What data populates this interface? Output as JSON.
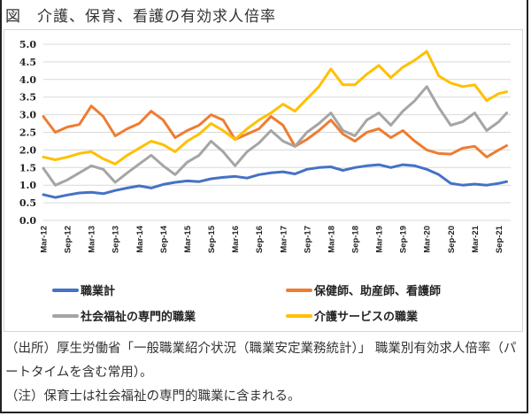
{
  "figure": {
    "title": "図　介護、保育、看護の有効求人倍率",
    "source_note": "（出所）厚生労働省「一般職業紹介状況（職業安定業務統計）」 職業別有効求人倍率（パートタイムを含む常用）。",
    "note": "（注）保育士は社会福祉の専門的職業に含まれる。"
  },
  "chart_data": {
    "type": "line",
    "title": "",
    "xlabel": "",
    "ylabel": "",
    "ylim": [
      0,
      5
    ],
    "yticks": [
      "0.0",
      "0.5",
      "1.0",
      "1.5",
      "2.0",
      "2.5",
      "3.0",
      "3.5",
      "4.0",
      "4.5",
      "5.0"
    ],
    "ytick_values": [
      0,
      0.5,
      1,
      1.5,
      2,
      2.5,
      3,
      3.5,
      4,
      4.5,
      5
    ],
    "xticks": [
      "Mar-12",
      "Sep-12",
      "Mar-13",
      "Sep-13",
      "Mar-14",
      "Sep-14",
      "Mar-15",
      "Sep-15",
      "Mar-16",
      "Sep-16",
      "Mar-17",
      "Sep-17",
      "Mar-18",
      "Sep-18",
      "Mar-19",
      "Sep-19",
      "Mar-20",
      "Sep-20",
      "Mar-21",
      "Sep-21"
    ],
    "xtick_months": [
      0,
      6,
      12,
      18,
      24,
      30,
      36,
      42,
      48,
      54,
      60,
      66,
      72,
      78,
      84,
      90,
      96,
      102,
      108,
      114
    ],
    "x_months_from_Mar12": [
      0,
      3,
      6,
      9,
      12,
      15,
      18,
      21,
      24,
      27,
      30,
      33,
      36,
      39,
      42,
      45,
      48,
      51,
      54,
      57,
      60,
      63,
      66,
      69,
      72,
      75,
      78,
      81,
      84,
      87,
      90,
      93,
      96,
      99,
      102,
      105,
      108,
      111,
      114,
      116
    ],
    "x_max_month": 117,
    "grid": true,
    "legend": "bottom",
    "series": [
      {
        "name": "職業計",
        "color": "#4472c4",
        "values": [
          0.73,
          0.65,
          0.72,
          0.78,
          0.8,
          0.76,
          0.85,
          0.92,
          0.98,
          0.92,
          1.02,
          1.08,
          1.12,
          1.1,
          1.18,
          1.22,
          1.25,
          1.2,
          1.3,
          1.35,
          1.38,
          1.32,
          1.45,
          1.5,
          1.52,
          1.42,
          1.5,
          1.55,
          1.58,
          1.5,
          1.58,
          1.55,
          1.45,
          1.3,
          1.05,
          1.0,
          1.03,
          1.0,
          1.05,
          1.1
        ]
      },
      {
        "name": "保健師、助産師、看護師",
        "color": "#ed7d31",
        "values": [
          2.95,
          2.5,
          2.65,
          2.72,
          3.25,
          2.95,
          2.4,
          2.6,
          2.75,
          3.1,
          2.85,
          2.35,
          2.55,
          2.7,
          3.0,
          2.85,
          2.3,
          2.45,
          2.6,
          2.95,
          2.7,
          2.1,
          2.3,
          2.55,
          2.85,
          2.45,
          2.25,
          2.5,
          2.6,
          2.35,
          2.55,
          2.25,
          2.0,
          1.9,
          1.88,
          2.05,
          2.1,
          1.8,
          2.0,
          2.12
        ]
      },
      {
        "name": "社会福祉の専門的職業",
        "color": "#a5a5a5",
        "values": [
          1.48,
          1.0,
          1.15,
          1.35,
          1.55,
          1.45,
          1.08,
          1.35,
          1.6,
          1.85,
          1.55,
          1.3,
          1.65,
          1.85,
          2.25,
          1.95,
          1.55,
          1.95,
          2.2,
          2.55,
          2.25,
          2.1,
          2.5,
          2.75,
          3.05,
          2.55,
          2.4,
          2.85,
          3.05,
          2.7,
          3.1,
          3.4,
          3.8,
          3.2,
          2.7,
          2.8,
          3.05,
          2.55,
          2.8,
          3.05
        ]
      },
      {
        "name": "介護サービスの職業",
        "color": "#ffc000",
        "values": [
          1.8,
          1.72,
          1.8,
          1.9,
          1.95,
          1.75,
          1.6,
          1.85,
          2.05,
          2.25,
          2.15,
          1.95,
          2.25,
          2.45,
          2.75,
          2.55,
          2.3,
          2.6,
          2.85,
          3.05,
          3.3,
          3.1,
          3.45,
          3.8,
          4.3,
          3.85,
          3.85,
          4.15,
          4.4,
          4.05,
          4.35,
          4.55,
          4.8,
          4.1,
          3.9,
          3.8,
          3.85,
          3.4,
          3.6,
          3.65
        ]
      }
    ]
  }
}
